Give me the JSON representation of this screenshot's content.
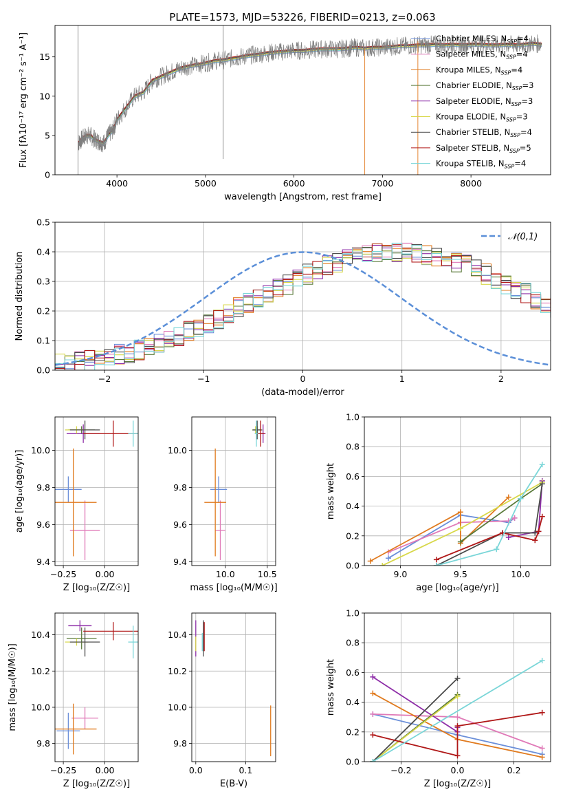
{
  "figure_title": "PLATE=1573, MJD=53226, FIBERID=0213, z=0.063",
  "model_colors": [
    "#6b8fd9",
    "#e07ab8",
    "#e07a1e",
    "#5a7a3a",
    "#8e2ea8",
    "#d8d84a",
    "#4a4a4a",
    "#b01818",
    "#7ad6d8"
  ],
  "model_names": [
    "Chabrier MILES",
    "Salpeter MILES",
    "Kroupa MILES",
    "Chabrier ELODIE",
    "Salpeter ELODIE",
    "Kroupa ELODIE",
    "Chabrier STELIB",
    "Salpeter STELIB",
    "Kroupa STELIB"
  ],
  "chart_data": [
    {
      "id": "spectrum",
      "type": "line",
      "xlabel": "wavelength [Angstrom, rest frame]",
      "ylabel": "Flux [fλ10⁻¹⁷ erg cm⁻² s⁻¹ A⁻¹]",
      "xlim": [
        3300,
        8900
      ],
      "ylim": [
        0,
        19
      ],
      "xticks": [
        4000,
        5000,
        6000,
        7000,
        8000
      ],
      "yticks": [
        0,
        5,
        10,
        15
      ],
      "legend_position": "right",
      "data_series": {
        "name": "data",
        "color": "#7f7f7f",
        "x": [
          3560,
          3600,
          3650,
          3700,
          3750,
          3800,
          3850,
          3900,
          3950,
          4000,
          4100,
          4200,
          4300,
          4400,
          4500,
          4600,
          4700,
          4800,
          4900,
          5000,
          5100,
          5200,
          5300,
          5400,
          5500,
          5600,
          5700,
          5800,
          5900,
          6000,
          6100,
          6200,
          6300,
          6400,
          6500,
          6600,
          6700,
          6800,
          6900,
          7000,
          7100,
          7200,
          7300,
          7400,
          7500,
          7600,
          7700,
          7800,
          7900,
          8000,
          8100,
          8200,
          8300,
          8400,
          8500,
          8600,
          8700,
          8800
        ],
        "y": [
          4,
          4.5,
          5,
          5,
          4.5,
          4.2,
          4,
          5,
          5.6,
          7,
          8.5,
          10,
          10.5,
          12,
          12.5,
          13,
          13.5,
          13.8,
          14,
          14.2,
          14.5,
          14.6,
          14.8,
          15,
          15.2,
          15.3,
          15.5,
          15.6,
          15.7,
          15.8,
          15.8,
          15.9,
          16,
          16,
          16,
          16.1,
          16.2,
          16.1,
          16.2,
          16.2,
          16.3,
          16.4,
          16.4,
          16.5,
          16.5,
          16.6,
          16.5,
          16.6,
          16.5,
          16.6,
          16.6,
          16.5,
          16.5,
          16.6,
          16.5,
          16.6,
          16.7,
          16.6
        ]
      },
      "legend_items": [
        {
          "name": "Chabrier MILES",
          "n": "4"
        },
        {
          "name": "Salpeter MILES",
          "n": "4"
        },
        {
          "name": "Kroupa MILES",
          "n": "4"
        },
        {
          "name": "Chabrier ELODIE",
          "n": "3"
        },
        {
          "name": "Salpeter ELODIE",
          "n": "3"
        },
        {
          "name": "Kroupa ELODIE",
          "n": "3"
        },
        {
          "name": "Chabrier STELIB",
          "n": "4"
        },
        {
          "name": "Salpeter STELIB",
          "n": "5"
        },
        {
          "name": "Kroupa STELIB",
          "n": "4"
        }
      ],
      "legend_n_label": "N"
    },
    {
      "id": "residuals",
      "type": "histogram",
      "xlabel": "(data-model)/error",
      "ylabel": "Normed distribution",
      "xlim": [
        -2.5,
        2.5
      ],
      "ylim": [
        0,
        0.5
      ],
      "xticks": [
        -2,
        -1,
        0,
        1,
        2
      ],
      "yticks": [
        0.0,
        0.1,
        0.2,
        0.3,
        0.4,
        0.5
      ],
      "bin_edges_start": -2.5,
      "bin_width": 0.1,
      "base_heights": [
        0.02,
        0.025,
        0.03,
        0.035,
        0.04,
        0.045,
        0.055,
        0.06,
        0.07,
        0.08,
        0.09,
        0.1,
        0.115,
        0.13,
        0.145,
        0.16,
        0.175,
        0.19,
        0.21,
        0.225,
        0.24,
        0.26,
        0.275,
        0.29,
        0.31,
        0.325,
        0.34,
        0.355,
        0.365,
        0.375,
        0.385,
        0.39,
        0.395,
        0.4,
        0.4,
        0.4,
        0.395,
        0.39,
        0.385,
        0.375,
        0.365,
        0.355,
        0.34,
        0.325,
        0.31,
        0.29,
        0.275,
        0.26,
        0.24,
        0.225,
        0.21,
        0.19,
        0.175,
        0.16,
        0.145,
        0.13,
        0.115,
        0.1,
        0.09,
        0.08,
        0.07,
        0.06,
        0.055,
        0.045,
        0.04,
        0.035,
        0.03,
        0.025,
        0.02,
        0.02
      ],
      "gaussian_label": "𝒩(0,1)",
      "gaussian_color": "#5b8fd8",
      "legend_position": "top-right"
    },
    {
      "id": "age_Z",
      "type": "scatter",
      "xlabel": "Z [log₁₀(Z/Z☉)]",
      "ylabel": "age  [log₁₀(age/yr)]",
      "xlim": [
        -0.3,
        0.2
      ],
      "ylim": [
        9.38,
        10.18
      ],
      "xticks": [
        -0.25,
        0.0
      ],
      "xtick_labels": [
        "−0.25",
        "0.00"
      ],
      "yticks": [
        9.4,
        9.6,
        9.8,
        10.0
      ],
      "points": [
        {
          "x": -0.22,
          "y": 9.79,
          "xerr": 0.08,
          "yerr": 0.07,
          "c": 0
        },
        {
          "x": -0.12,
          "y": 9.57,
          "xerr": 0.09,
          "yerr": 0.16,
          "c": 1
        },
        {
          "x": -0.19,
          "y": 9.72,
          "xerr": 0.14,
          "yerr": 0.29,
          "c": 2
        },
        {
          "x": -0.14,
          "y": 10.11,
          "xerr": 0.08,
          "yerr": 0.02,
          "c": 3
        },
        {
          "x": -0.13,
          "y": 10.09,
          "xerr": 0.1,
          "yerr": 0.05,
          "c": 4
        },
        {
          "x": -0.17,
          "y": 10.11,
          "xerr": 0.07,
          "yerr": 0.02,
          "c": 5
        },
        {
          "x": -0.12,
          "y": 10.11,
          "xerr": 0.09,
          "yerr": 0.05,
          "c": 6
        },
        {
          "x": 0.05,
          "y": 10.09,
          "xerr": 0.18,
          "yerr": 0.07,
          "c": 7
        },
        {
          "x": 0.17,
          "y": 10.09,
          "xerr": 0.03,
          "yerr": 0.07,
          "c": 8
        }
      ]
    },
    {
      "id": "age_mass",
      "type": "scatter",
      "xlabel": "mass [log₁₀(M/M☉)]",
      "ylabel": "",
      "xlim": [
        9.6,
        10.6
      ],
      "ylim": [
        9.38,
        10.18
      ],
      "xticks": [
        10.0,
        10.5
      ],
      "yticks": [
        9.4,
        9.6,
        9.8,
        10.0
      ],
      "points": [
        {
          "x": 9.92,
          "y": 9.79,
          "xerr": 0.1,
          "yerr": 0.07,
          "c": 0
        },
        {
          "x": 9.94,
          "y": 9.57,
          "xerr": 0.06,
          "yerr": 0.16,
          "c": 1
        },
        {
          "x": 9.88,
          "y": 9.72,
          "xerr": 0.13,
          "yerr": 0.29,
          "c": 2
        },
        {
          "x": 10.38,
          "y": 10.11,
          "xerr": 0.06,
          "yerr": 0.02,
          "c": 3
        },
        {
          "x": 10.45,
          "y": 10.09,
          "xerr": 0.03,
          "yerr": 0.05,
          "c": 4
        },
        {
          "x": 10.36,
          "y": 10.11,
          "xerr": 0.02,
          "yerr": 0.02,
          "c": 5
        },
        {
          "x": 10.38,
          "y": 10.11,
          "xerr": 0.05,
          "yerr": 0.05,
          "c": 6
        },
        {
          "x": 10.42,
          "y": 10.09,
          "xerr": 0.05,
          "yerr": 0.07,
          "c": 7
        },
        {
          "x": 10.37,
          "y": 10.09,
          "xerr": 0.02,
          "yerr": 0.07,
          "c": 8
        }
      ]
    },
    {
      "id": "weight_age",
      "type": "line",
      "xlabel": "age  [log₁₀(age/yr)]",
      "ylabel": "mass weight",
      "xlim": [
        8.7,
        10.25
      ],
      "ylim": [
        0,
        1.0
      ],
      "xticks": [
        9.0,
        9.5,
        10.0
      ],
      "yticks": [
        0.0,
        0.2,
        0.4,
        0.6,
        0.8,
        1.0
      ],
      "series": [
        {
          "c": 0,
          "x": [
            8.9,
            9.5,
            9.9,
            9.95
          ],
          "y": [
            0.05,
            0.34,
            0.29,
            0.32
          ]
        },
        {
          "c": 1,
          "x": [
            8.9,
            9.5,
            9.9,
            9.95
          ],
          "y": [
            0.09,
            0.29,
            0.3,
            0.32
          ]
        },
        {
          "c": 2,
          "x": [
            8.75,
            9.5,
            9.5,
            9.9
          ],
          "y": [
            0.03,
            0.36,
            0.15,
            0.46
          ]
        },
        {
          "c": 3,
          "x": [
            9.5,
            10.0,
            10.18
          ],
          "y": [
            0.16,
            0.45,
            0.55
          ]
        },
        {
          "c": 4,
          "x": [
            9.9,
            10.15,
            10.18
          ],
          "y": [
            0.19,
            0.23,
            0.57
          ]
        },
        {
          "c": 5,
          "x": [
            8.85,
            9.5,
            10.18
          ],
          "y": [
            0.0,
            0.25,
            0.56
          ]
        },
        {
          "c": 6,
          "x": [
            9.3,
            9.85,
            10.12,
            10.18
          ],
          "y": [
            0.0,
            0.22,
            0.22,
            0.55
          ]
        },
        {
          "c": 7,
          "x": [
            9.3,
            9.85,
            10.12,
            10.15,
            10.18
          ],
          "y": [
            0.04,
            0.22,
            0.17,
            0.23,
            0.33
          ]
        },
        {
          "c": 8,
          "x": [
            9.3,
            9.8,
            10.0,
            10.18
          ],
          "y": [
            0.0,
            0.11,
            0.45,
            0.68
          ]
        }
      ]
    },
    {
      "id": "mass_Z",
      "type": "scatter",
      "xlabel": "Z [log₁₀(Z/Z☉)]",
      "ylabel": "mass [log₁₀(M/M☉)]",
      "xlim": [
        -0.3,
        0.2
      ],
      "ylim": [
        9.7,
        10.52
      ],
      "xticks": [
        -0.25,
        0.0
      ],
      "xtick_labels": [
        "−0.25",
        "0.00"
      ],
      "yticks": [
        9.8,
        10.0,
        10.2,
        10.4
      ],
      "points": [
        {
          "x": -0.22,
          "y": 9.87,
          "xerr": 0.07,
          "yerr": 0.1,
          "c": 0
        },
        {
          "x": -0.12,
          "y": 9.94,
          "xerr": 0.08,
          "yerr": 0.06,
          "c": 1
        },
        {
          "x": -0.19,
          "y": 9.88,
          "xerr": 0.14,
          "yerr": 0.14,
          "c": 2
        },
        {
          "x": -0.14,
          "y": 10.38,
          "xerr": 0.09,
          "yerr": 0.06,
          "c": 3
        },
        {
          "x": -0.15,
          "y": 10.45,
          "xerr": 0.07,
          "yerr": 0.03,
          "c": 4
        },
        {
          "x": -0.17,
          "y": 10.36,
          "xerr": 0.07,
          "yerr": 0.02,
          "c": 5
        },
        {
          "x": -0.12,
          "y": 10.36,
          "xerr": 0.09,
          "yerr": 0.08,
          "c": 6
        },
        {
          "x": 0.05,
          "y": 10.42,
          "xerr": 0.18,
          "yerr": 0.05,
          "c": 7
        },
        {
          "x": 0.17,
          "y": 10.36,
          "xerr": 0.03,
          "yerr": 0.09,
          "c": 8
        }
      ]
    },
    {
      "id": "mass_ebv",
      "type": "scatter",
      "xlabel": "E(B-V)",
      "ylabel": "",
      "xlim": [
        -0.008,
        0.16
      ],
      "ylim": [
        9.7,
        10.52
      ],
      "xticks": [
        0.0,
        0.1
      ],
      "yticks": [
        9.8,
        10.0,
        10.2,
        10.4
      ],
      "points": [
        {
          "x": 0.0,
          "y": 10.38,
          "xerr": 0,
          "yerr": 0.1,
          "c": 4
        },
        {
          "x": 0.0,
          "y": 10.35,
          "xerr": 0,
          "yerr": 0.04,
          "c": 5
        },
        {
          "x": 0.015,
          "y": 10.38,
          "xerr": 0,
          "yerr": 0.1,
          "c": 6
        },
        {
          "x": 0.017,
          "y": 10.39,
          "xerr": 0,
          "yerr": 0.08,
          "c": 7
        },
        {
          "x": 0.013,
          "y": 10.36,
          "xerr": 0,
          "yerr": 0.05,
          "c": 8
        },
        {
          "x": 0.15,
          "y": 9.87,
          "xerr": 0,
          "yerr": 0.14,
          "c": 2
        }
      ]
    },
    {
      "id": "weight_Z",
      "type": "line",
      "xlabel": "Z [log₁₀(Z/Z☉)]",
      "ylabel": "mass weight",
      "xlim": [
        -0.33,
        0.33
      ],
      "ylim": [
        0,
        1.0
      ],
      "xticks": [
        -0.2,
        0.0,
        0.2
      ],
      "xtick_labels": [
        "−0.2",
        "0.0",
        "0.2"
      ],
      "yticks": [
        0.0,
        0.2,
        0.4,
        0.6,
        0.8,
        1.0
      ],
      "series": [
        {
          "c": 0,
          "x": [
            -0.3,
            0.0,
            0.3
          ],
          "y": [
            0.32,
            0.18,
            0.05
          ]
        },
        {
          "c": 1,
          "x": [
            -0.3,
            0.0,
            0.3
          ],
          "y": [
            0.32,
            0.3,
            0.09
          ]
        },
        {
          "c": 2,
          "x": [
            -0.3,
            0.0,
            0.3
          ],
          "y": [
            0.46,
            0.15,
            0.03
          ]
        },
        {
          "c": 3,
          "x": [
            -0.3,
            0.0
          ],
          "y": [
            0.0,
            0.45
          ]
        },
        {
          "c": 4,
          "x": [
            -0.3,
            0.0,
            0.0
          ],
          "y": [
            0.57,
            0.2,
            0.23
          ]
        },
        {
          "c": 5,
          "x": [
            -0.3,
            0.0
          ],
          "y": [
            0.0,
            0.44
          ]
        },
        {
          "c": 6,
          "x": [
            -0.3,
            0.0
          ],
          "y": [
            0.0,
            0.56
          ]
        },
        {
          "c": 7,
          "x": [
            -0.3,
            0.0,
            0.0,
            0.3
          ],
          "y": [
            0.18,
            0.04,
            0.24,
            0.33
          ]
        },
        {
          "c": 8,
          "x": [
            -0.3,
            0.3
          ],
          "y": [
            0.0,
            0.68
          ]
        }
      ]
    }
  ]
}
